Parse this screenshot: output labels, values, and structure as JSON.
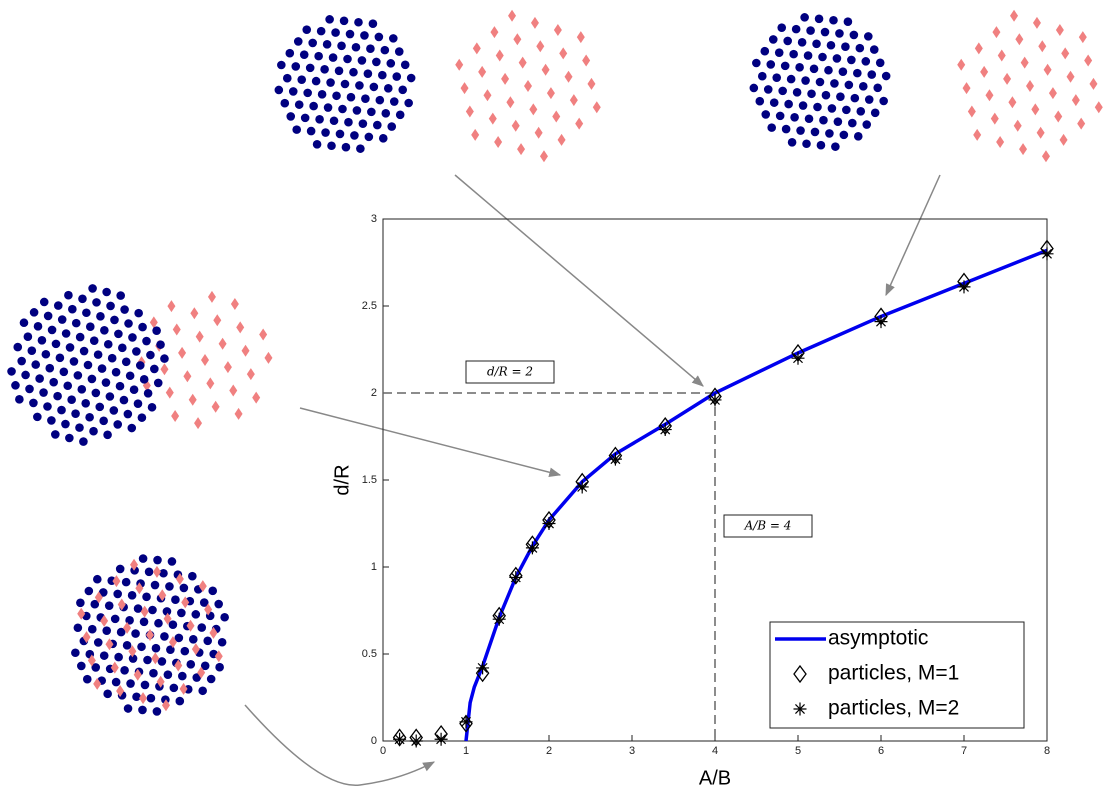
{
  "chart_data": {
    "type": "line",
    "xlabel": "A/B",
    "ylabel": "d/R",
    "xlim": [
      0,
      8
    ],
    "ylim": [
      0,
      3
    ],
    "xticks": [
      0,
      1,
      2,
      3,
      4,
      5,
      6,
      7,
      8
    ],
    "yticks": [
      0,
      0.5,
      1,
      1.5,
      2,
      2.5,
      3
    ],
    "reference": {
      "x": 4,
      "y": 2
    },
    "annotations": [
      "d/R = 2",
      "A/B = 4"
    ],
    "legend": "lower right",
    "series": [
      {
        "name": "asymptotic",
        "color": "#0000ee",
        "marker": "line",
        "x": [
          1,
          1.05,
          1.1,
          1.2,
          1.4,
          1.6,
          1.8,
          2,
          2.4,
          2.8,
          3.4,
          4,
          5,
          6,
          7,
          8
        ],
        "values": [
          0,
          0.22,
          0.31,
          0.43,
          0.71,
          0.94,
          1.12,
          1.27,
          1.49,
          1.65,
          1.82,
          2.0,
          2.23,
          2.44,
          2.63,
          2.82
        ]
      },
      {
        "name": "particles, M=1",
        "color": "#000000",
        "marker": "diamond",
        "x": [
          0.2,
          0.4,
          0.7,
          1,
          1.2,
          1.4,
          1.6,
          1.8,
          2,
          2.4,
          2.8,
          3.4,
          4,
          5,
          6,
          7,
          8
        ],
        "values": [
          0.02,
          0.02,
          0.04,
          0.1,
          0.39,
          0.72,
          0.95,
          1.13,
          1.27,
          1.49,
          1.64,
          1.81,
          1.98,
          2.23,
          2.44,
          2.64,
          2.83
        ]
      },
      {
        "name": "particles, M=2",
        "color": "#000000",
        "marker": "asterisk",
        "x": [
          0.2,
          0.4,
          0.7,
          1,
          1.2,
          1.4,
          1.6,
          1.8,
          2,
          2.4,
          2.8,
          3.4,
          4,
          5,
          6,
          7,
          8
        ],
        "values": [
          0.01,
          0.0,
          0.01,
          0.11,
          0.42,
          0.7,
          0.94,
          1.11,
          1.25,
          1.46,
          1.62,
          1.79,
          1.96,
          2.2,
          2.41,
          2.61,
          2.8
        ]
      }
    ]
  }
}
